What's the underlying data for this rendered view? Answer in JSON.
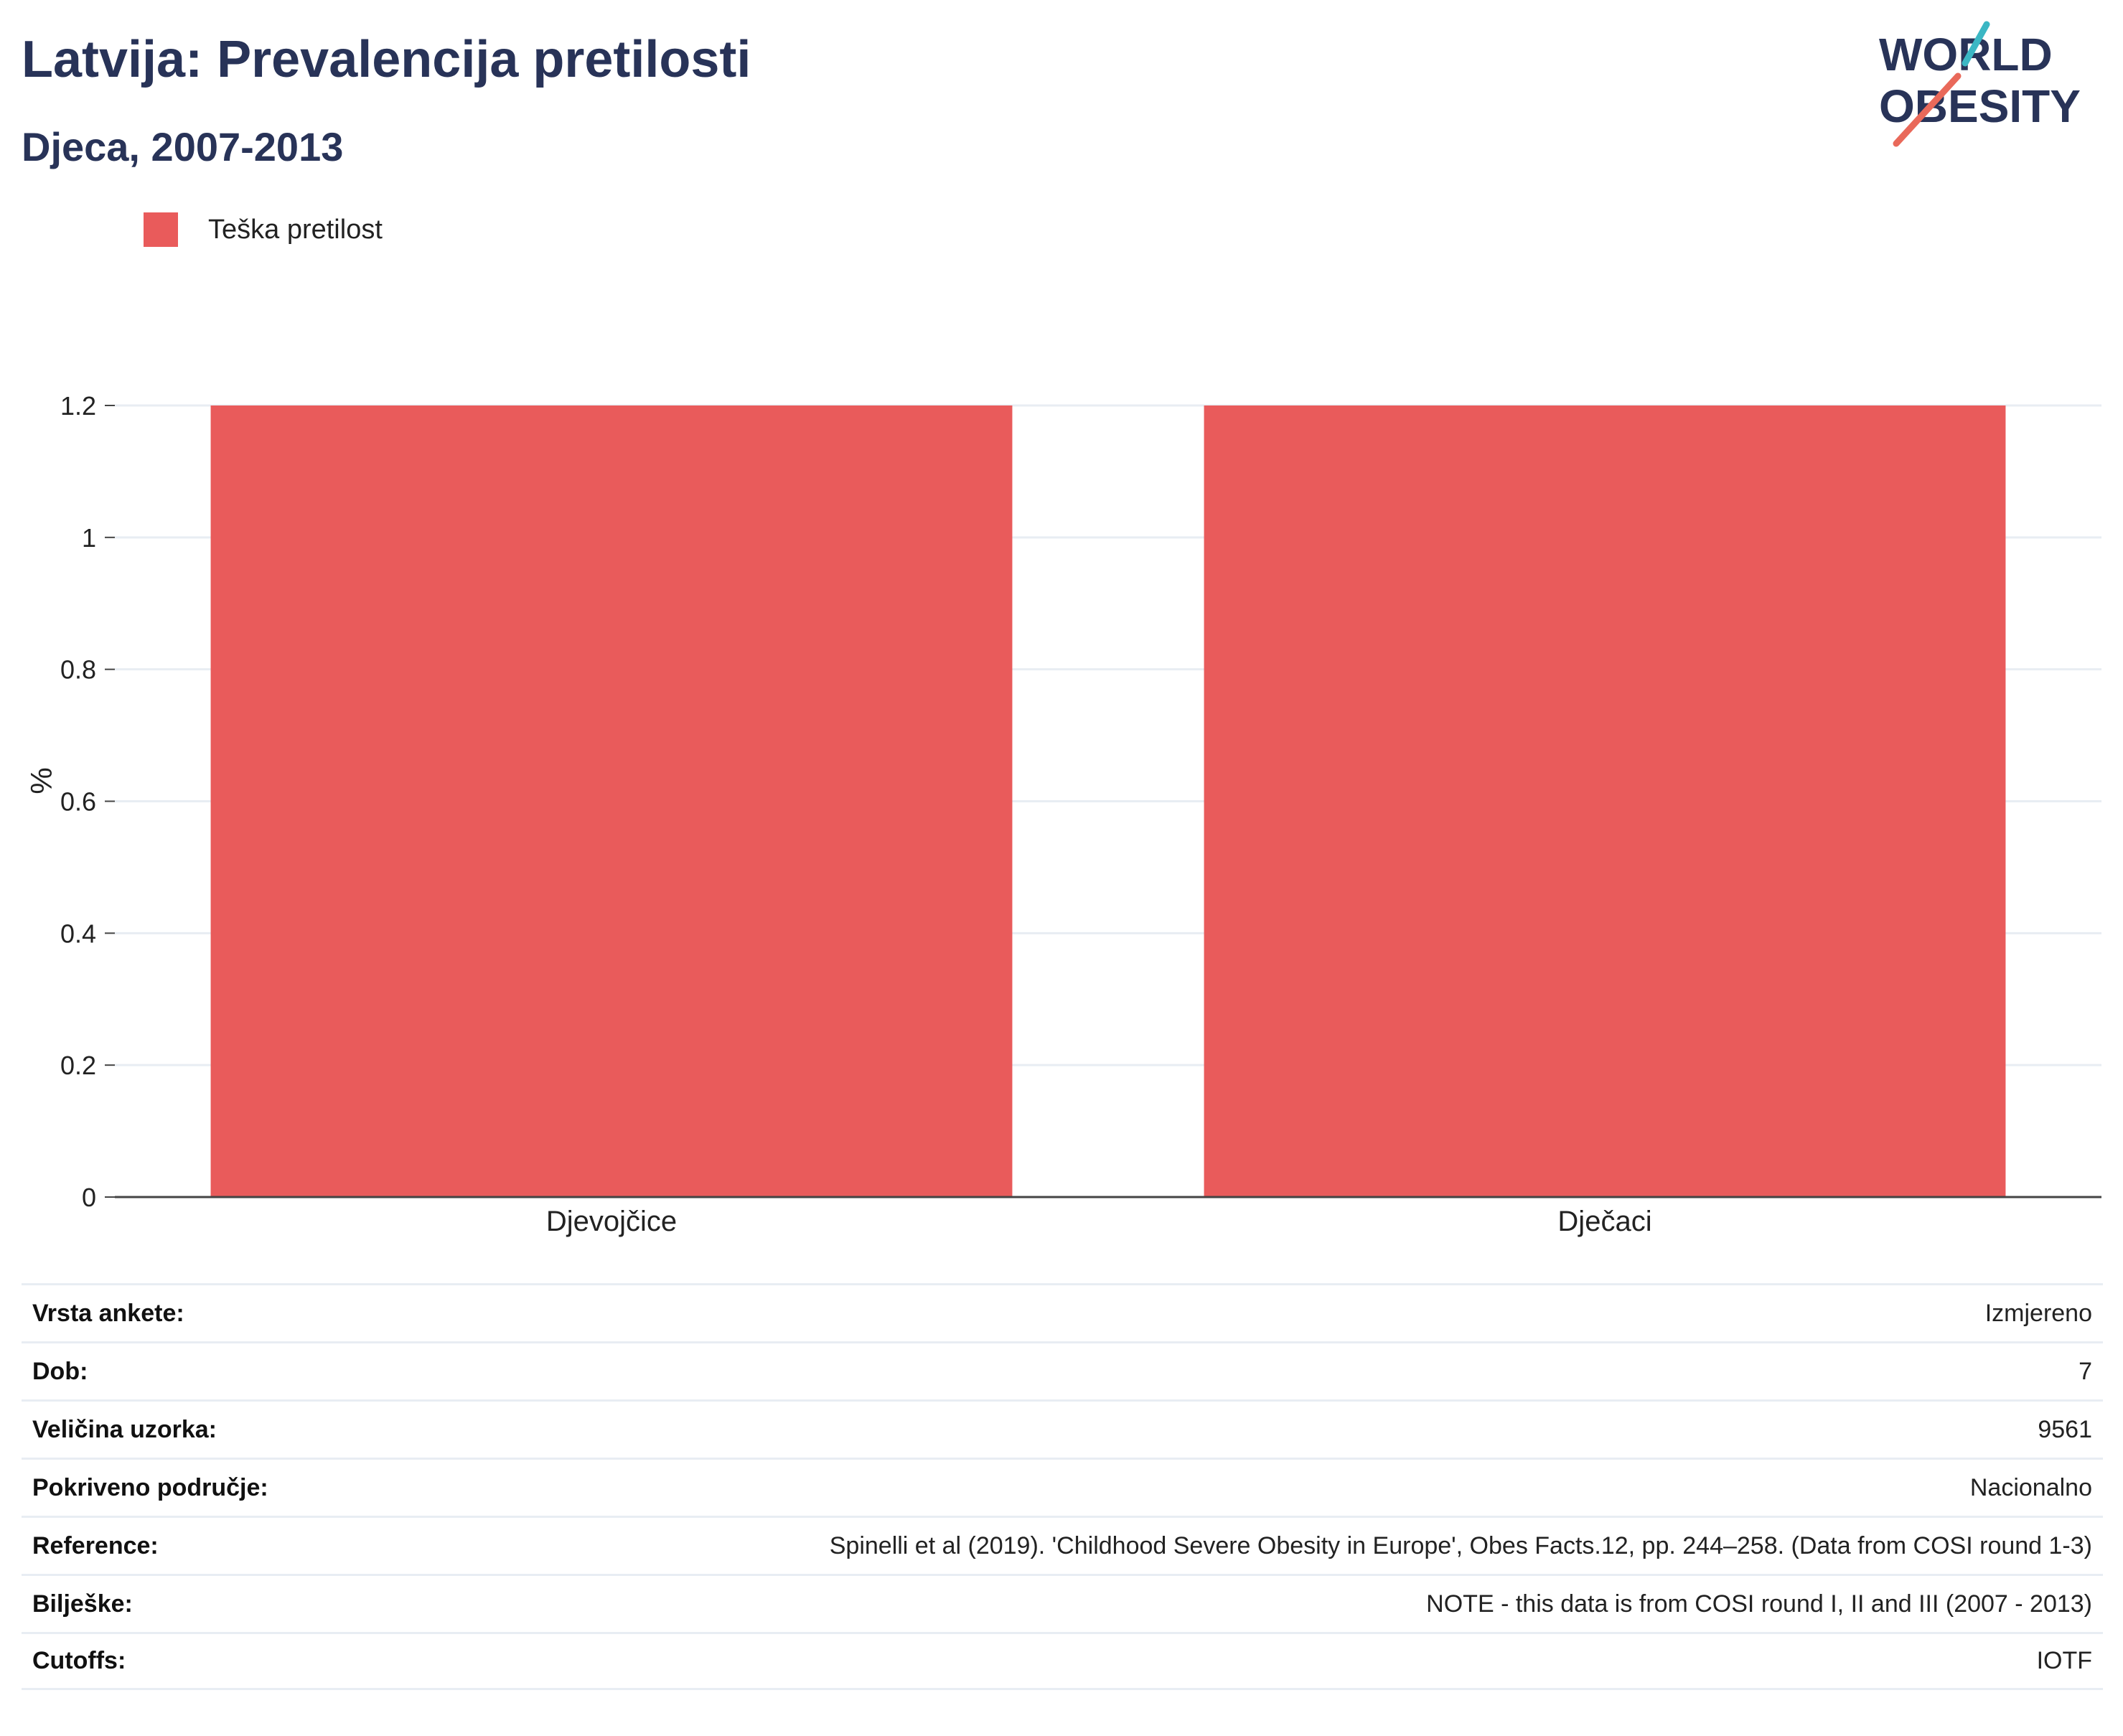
{
  "header": {
    "title": "Latvija: Prevalencija pretilosti",
    "subtitle": "Djeca, 2007-2013",
    "logo_text": [
      "WORLD",
      "OBESITY"
    ]
  },
  "colors": {
    "bar": "#e95b5b",
    "title": "#283358",
    "logo_teal": "#3bb7c4",
    "logo_coral": "#e9695a",
    "grid": "#e8edf3"
  },
  "chart_data": {
    "type": "bar",
    "categories": [
      "Djevojčice",
      "Dječaci"
    ],
    "series": [
      {
        "name": "Teška pretilost",
        "values": [
          1.2,
          1.2
        ]
      }
    ],
    "ylabel": "%",
    "ylim": [
      0,
      1.2
    ],
    "yticks": [
      0,
      0.2,
      0.4,
      0.6,
      0.8,
      1,
      1.2
    ],
    "ytick_labels": [
      "0",
      "0.2",
      "0.4",
      "0.6",
      "0.8",
      "1",
      "1.2"
    ],
    "grid": true,
    "legend_position": "top-left"
  },
  "meta": [
    {
      "label": "Vrsta ankete:",
      "value": "Izmjereno"
    },
    {
      "label": "Dob:",
      "value": "7"
    },
    {
      "label": "Veličina uzorka:",
      "value": "9561"
    },
    {
      "label": "Pokriveno područje:",
      "value": "Nacionalno"
    },
    {
      "label": "Reference:",
      "value": "Spinelli et al (2019). 'Childhood Severe Obesity in Europe', Obes Facts.12, pp. 244–258. (Data from COSI round 1-3)"
    },
    {
      "label": "Bilješke:",
      "value": "NOTE - this data is from COSI round I, II and III (2007 - 2013)"
    },
    {
      "label": "Cutoffs:",
      "value": "IOTF"
    }
  ]
}
